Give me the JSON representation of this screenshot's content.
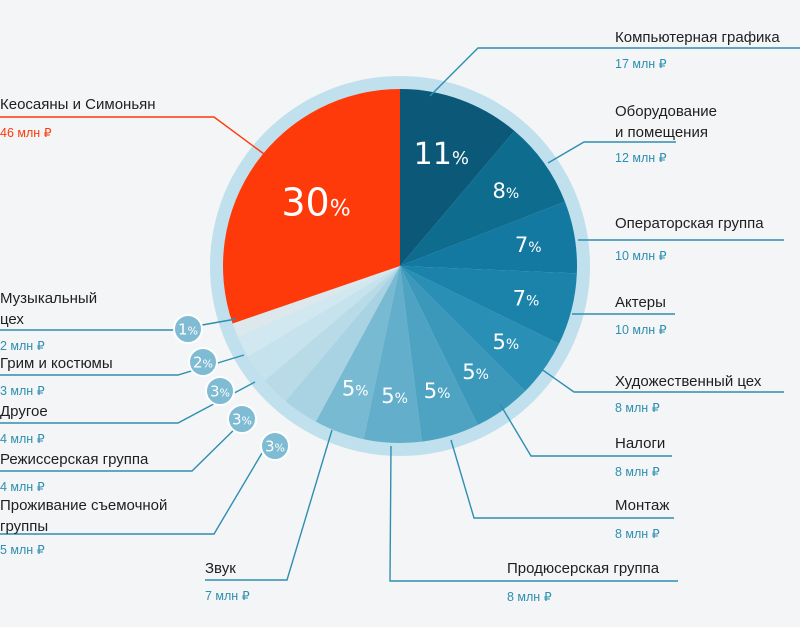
{
  "chart_data": {
    "type": "pie",
    "currency": "₽",
    "unit": "млн",
    "colors": {
      "ring": "#bfe0ec",
      "leader_blue": "#2f8fb0",
      "accent_red": "#ff3a0a",
      "dark_text": "#1f1f1f"
    },
    "slices": [
      {
        "label": "Компьютерная графика",
        "value": 17,
        "percent_label": "11",
        "color": "#0b5878"
      },
      {
        "label": "Оборудование и помещения",
        "value": 12,
        "percent_label": "8",
        "color": "#0e6c8f"
      },
      {
        "label": "Операторская группа",
        "value": 10,
        "percent_label": "7",
        "color": "#1479a0"
      },
      {
        "label": "Актеры",
        "value": 10,
        "percent_label": "7",
        "color": "#1b83aa"
      },
      {
        "label": "Художественный цех",
        "value": 8,
        "percent_label": "5",
        "color": "#2a8fb4"
      },
      {
        "label": "Налоги",
        "value": 8,
        "percent_label": "5",
        "color": "#3b98bb"
      },
      {
        "label": "Монтаж",
        "value": 8,
        "percent_label": "5",
        "color": "#4ea3c3"
      },
      {
        "label": "Продюсерская группа",
        "value": 8,
        "percent_label": "5",
        "color": "#62aecb"
      },
      {
        "label": "Звук",
        "value": 7,
        "percent_label": "5",
        "color": "#79bad3"
      },
      {
        "label": "Проживание съемочной группы",
        "value": 5,
        "percent_label": "3",
        "color": "#a9d3e3"
      },
      {
        "label": "Режиссерская группа",
        "value": 4,
        "percent_label": "3",
        "color": "#b9dbe8"
      },
      {
        "label": "Другое",
        "value": 4,
        "percent_label": "3",
        "color": "#c6e2ed"
      },
      {
        "label": "Грим и костюмы",
        "value": 3,
        "percent_label": "2",
        "color": "#d2e8f0"
      },
      {
        "label": "Музыкальный цех",
        "value": 2,
        "percent_label": "1",
        "color": "#dde8ec"
      },
      {
        "label": "Кеосаяны и Симоньян",
        "value": 46,
        "percent_label": "30",
        "color": "#ff3a0a"
      }
    ],
    "value_labels": {
      "Компьютерная графика": "17 млн ₽",
      "Оборудование и помещения": "12 млн ₽",
      "Операторская группа": "10 млн ₽",
      "Актеры": "10 млн ₽",
      "Художественный цех": "8 млн ₽",
      "Налоги": "8 млн ₽",
      "Монтаж": "8 млн ₽",
      "Продюсерская группа": "8 млн ₽",
      "Звук": "7 млн ₽",
      "Проживание съемочной группы": "5 млн ₽",
      "Режиссерская группа": "4 млн ₽",
      "Другое": "4 млн ₽",
      "Грим и костюмы": "3 млн ₽",
      "Музыкальный цех": "2 млн ₽",
      "Кеосаяны и Симоньян": "46 млн ₽"
    },
    "name_lines": {
      "Оборудование и помещения": [
        "Оборудование",
        "и помещения"
      ],
      "Музыкальный цех": [
        "Музыкальный",
        "цех"
      ],
      "Проживание съемочной группы": [
        "Проживание съемочной",
        "группы"
      ]
    }
  }
}
